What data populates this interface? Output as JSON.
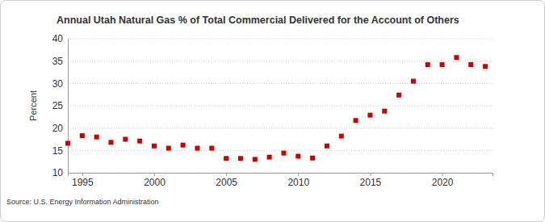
{
  "chart_data": {
    "type": "scatter",
    "title": "Annual Utah Natural Gas % of Total Commercial Delivered for the Account of Others",
    "y_label": "Percent",
    "source": "Source: U.S. Energy Information Administration",
    "x": [
      1994,
      1995,
      1996,
      1997,
      1998,
      1999,
      2000,
      2001,
      2002,
      2003,
      2004,
      2005,
      2006,
      2007,
      2008,
      2009,
      2010,
      2011,
      2012,
      2013,
      2014,
      2015,
      2016,
      2017,
      2018,
      2019,
      2020,
      2021,
      2022,
      2023
    ],
    "values": [
      16.6,
      18.3,
      18.0,
      16.8,
      17.5,
      17.1,
      16.0,
      15.5,
      16.2,
      15.5,
      15.5,
      13.2,
      13.2,
      13.0,
      13.5,
      14.4,
      13.7,
      13.3,
      16.0,
      18.2,
      21.7,
      22.9,
      23.8,
      27.4,
      30.5,
      34.2,
      34.2,
      35.8,
      34.2,
      33.8
    ],
    "color": "#cc0000",
    "marker": "square",
    "xlim": [
      1994,
      2023.5
    ],
    "xticks": [
      1995,
      2000,
      2005,
      2010,
      2015,
      2020
    ],
    "ylim": [
      10,
      40
    ],
    "yticks": [
      10,
      15,
      20,
      25,
      30,
      35,
      40
    ],
    "grid": true
  }
}
